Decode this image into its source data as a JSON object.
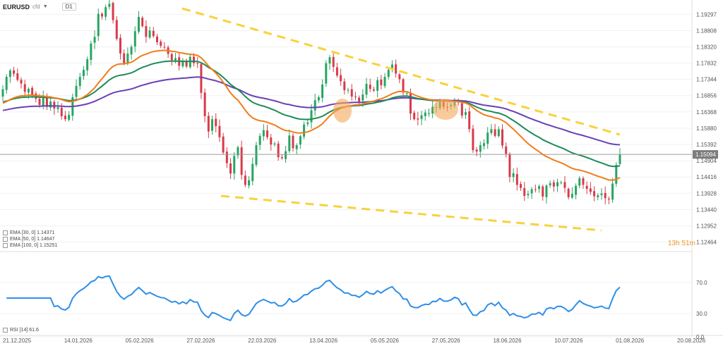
{
  "header": {
    "symbol": "EURUSD",
    "symbol_suffix": "cfd",
    "timeframe": "D1"
  },
  "legend": [
    {
      "text": "EMA [30, 0] 1.14371",
      "color": "#f07d1a"
    },
    {
      "text": "EMA [50, 0] 1.14647",
      "color": "#1f8a5a"
    },
    {
      "text": "EMA [100, 0] 1.15251",
      "color": "#6a3fb5"
    }
  ],
  "rsi_label": "RSI [14] 61.6",
  "countdown": "13h 51m",
  "current_price": "1.15094",
  "colors": {
    "up": "#27a562",
    "down": "#d83a4a",
    "ema30": "#f07d1a",
    "ema50": "#1f8a5a",
    "ema100": "#6a3fb5",
    "trend": "#f8d23c",
    "rsi": "#2f8fe8",
    "highlight": "#f5a95a"
  },
  "chart_data": {
    "type": "candlestick",
    "title": "EURUSD cfd D1",
    "y_axis": {
      "ticks": [
        "1.19297",
        "1.18808",
        "1.18320",
        "1.17832",
        "1.17344",
        "1.16856",
        "1.16368",
        "1.15880",
        "1.15392",
        "1.14904",
        "1.14416",
        "1.13928",
        "1.13440",
        "1.12952",
        "1.12464"
      ]
    },
    "x_axis": {
      "ticks": [
        "21.12.2025",
        "14.01.2026",
        "05.02.2026",
        "27.02.2026",
        "22.03.2026",
        "13.04.2026",
        "05.05.2026",
        "27.05.2026",
        "18.06.2026",
        "10.07.2026",
        "01.08.2026",
        "20.08.2026"
      ]
    },
    "closes": [
      1.1705,
      1.1742,
      1.1761,
      1.1751,
      1.1733,
      1.1722,
      1.1697,
      1.1706,
      1.1689,
      1.1676,
      1.1658,
      1.1681,
      1.1652,
      1.1668,
      1.1647,
      1.1651,
      1.1624,
      1.1615,
      1.1628,
      1.1681,
      1.1715,
      1.1742,
      1.1763,
      1.1795,
      1.1842,
      1.1862,
      1.1931,
      1.1923,
      1.1951,
      1.1961,
      1.1912,
      1.1856,
      1.1812,
      1.1783,
      1.1812,
      1.1832,
      1.1879,
      1.1922,
      1.1894,
      1.1862,
      1.1881,
      1.1864,
      1.1846,
      1.1835,
      1.1831,
      1.1811,
      1.1792,
      1.1798,
      1.1775,
      1.1789,
      1.1773,
      1.1802,
      1.1783,
      1.1781,
      1.1694,
      1.1624,
      1.1578,
      1.1615,
      1.1594,
      1.1561,
      1.1515,
      1.1483,
      1.1452,
      1.1505,
      1.1531,
      1.1448,
      1.1418,
      1.1432,
      1.1481,
      1.1537,
      1.1565,
      1.1582,
      1.1561,
      1.1539,
      1.1542,
      1.1501,
      1.1498,
      1.1519,
      1.1566,
      1.1528,
      1.1537,
      1.1564,
      1.1599,
      1.1605,
      1.1642,
      1.1672,
      1.1681,
      1.1719,
      1.1783,
      1.1801,
      1.1772,
      1.1746,
      1.1729,
      1.1702,
      1.1703,
      1.1683,
      1.1682,
      1.1668,
      1.1689,
      1.1721,
      1.1706,
      1.1701,
      1.1732,
      1.1717,
      1.1742,
      1.1763,
      1.1779,
      1.1752,
      1.1735,
      1.1695,
      1.1693,
      1.1632,
      1.1615,
      1.1614,
      1.1627,
      1.1635,
      1.1633,
      1.1652,
      1.1651,
      1.1669,
      1.1652,
      1.1651,
      1.1658,
      1.1672,
      1.1665,
      1.1626,
      1.1636,
      1.1585,
      1.1522,
      1.1518,
      1.1537,
      1.1543,
      1.1575,
      1.1585,
      1.1565,
      1.1585,
      1.1536,
      1.1511,
      1.1442,
      1.1453,
      1.1418,
      1.1409,
      1.1385,
      1.1391,
      1.1405,
      1.1405,
      1.1414,
      1.1383,
      1.1416,
      1.1423,
      1.1413,
      1.1426,
      1.1425,
      1.1409,
      1.1381,
      1.1391,
      1.1415,
      1.1438,
      1.1418,
      1.1406,
      1.1397,
      1.1384,
      1.1387,
      1.1392,
      1.1378,
      1.1375,
      1.1422,
      1.1478,
      1.1509
    ],
    "ema30_last": 1.14371,
    "ema50_last": 1.14647,
    "ema100_last": 1.15251,
    "rsi": {
      "ticks": [
        "70.0",
        "30.0",
        "0.0"
      ],
      "last": 61.6
    }
  }
}
